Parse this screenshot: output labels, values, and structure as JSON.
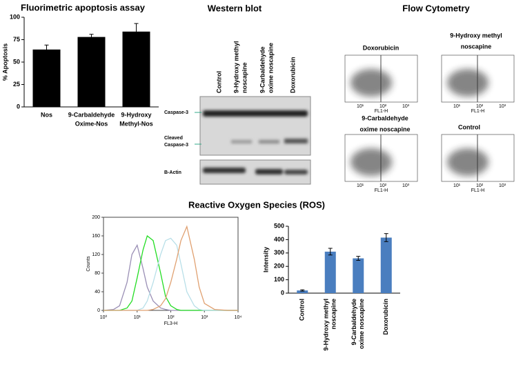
{
  "chart_data": [
    {
      "type": "bar",
      "title": "Fluorimetric apoptosis assay",
      "y_label": "% Apoptosis",
      "categories": [
        [
          "Nos"
        ],
        [
          "9-Carbaldehyde",
          "Oxime-Nos"
        ],
        [
          "9-Hydroxy",
          "Methyl-Nos"
        ]
      ],
      "values": [
        64,
        78,
        84
      ],
      "errors": [
        5,
        3,
        9
      ],
      "color": "#000000",
      "ylim": [
        0,
        100
      ],
      "yticks": [
        0,
        25,
        50,
        75,
        100
      ]
    },
    {
      "type": "line",
      "x_label": "FL3-H",
      "y_label": "Counts",
      "log_x": true,
      "x": [
        1,
        2,
        3,
        5,
        7,
        10,
        15,
        20,
        30,
        50,
        70,
        100,
        150,
        200,
        300,
        500,
        700,
        1000,
        2000,
        5000,
        10000
      ],
      "series": [
        {
          "color": "#9a8fb5",
          "values": [
            0,
            2,
            10,
            60,
            120,
            140,
            90,
            50,
            20,
            5,
            2,
            0,
            0,
            0,
            0,
            0,
            0,
            0,
            0,
            0,
            0
          ]
        },
        {
          "color": "#22dd22",
          "values": [
            0,
            0,
            0,
            5,
            20,
            70,
            130,
            160,
            150,
            80,
            30,
            10,
            2,
            0,
            0,
            0,
            0,
            0,
            0,
            0,
            0
          ]
        },
        {
          "color": "#b8dfe8",
          "values": [
            0,
            0,
            0,
            0,
            0,
            0,
            5,
            20,
            60,
            120,
            150,
            155,
            140,
            100,
            40,
            10,
            2,
            0,
            0,
            0,
            0
          ]
        },
        {
          "color": "#e0a070",
          "values": [
            0,
            0,
            0,
            0,
            0,
            0,
            0,
            0,
            2,
            10,
            25,
            60,
            110,
            150,
            180,
            110,
            50,
            15,
            2,
            0,
            0
          ]
        }
      ],
      "xlim": [
        1,
        10000
      ],
      "xticks": [
        {
          "value": 1,
          "label": "10⁰"
        },
        {
          "value": 10,
          "label": "10¹"
        },
        {
          "value": 100,
          "label": "10²"
        },
        {
          "value": 1000,
          "label": "10³"
        },
        {
          "value": 10000,
          "label": "10⁴"
        }
      ],
      "ylim": [
        0,
        200
      ],
      "yticks": [
        0,
        40,
        80,
        120,
        160,
        200
      ]
    },
    {
      "type": "bar",
      "y_label": "Intensity",
      "categories": [
        [
          "Control"
        ],
        [
          "9-Hydroxy methyl",
          "noscapine"
        ],
        [
          "9-Carbaldehyde",
          "oxime noscapine"
        ],
        [
          "Doxorubicin"
        ]
      ],
      "values": [
        20,
        310,
        260,
        415
      ],
      "errors": [
        5,
        25,
        15,
        30
      ],
      "color": "#4a7ebf",
      "ylim": [
        0,
        500
      ],
      "yticks": [
        0,
        100,
        200,
        300,
        400,
        500
      ]
    }
  ],
  "ros_title": "Reactive Oxygen Species (ROS)",
  "western_blot": {
    "title": "Western blot",
    "lanes": [
      [
        "Control"
      ],
      [
        "9-Hydroxy methyl",
        "noscapine"
      ],
      [
        "9-Carbaldehyde",
        "oxime noscapine"
      ],
      [
        "Doxorubicin"
      ]
    ],
    "bands": [
      [
        "Caspase-3"
      ],
      [
        "Cleaved",
        "Caspase-3"
      ],
      [
        "B-Actin"
      ]
    ]
  },
  "flow_cytometry": {
    "title": "Flow Cytometry",
    "axis_label": "FL1-H",
    "ticks": [
      "10¹",
      "10²",
      "10³"
    ],
    "panels": [
      {
        "title": [
          "Doxorubicin"
        ]
      },
      {
        "title": [
          "9-Hydroxy methyl",
          "noscapine"
        ]
      },
      {
        "title": [
          "9-Carbaldehyde",
          "oxime noscapine"
        ]
      },
      {
        "title": [
          "Control"
        ]
      }
    ]
  }
}
